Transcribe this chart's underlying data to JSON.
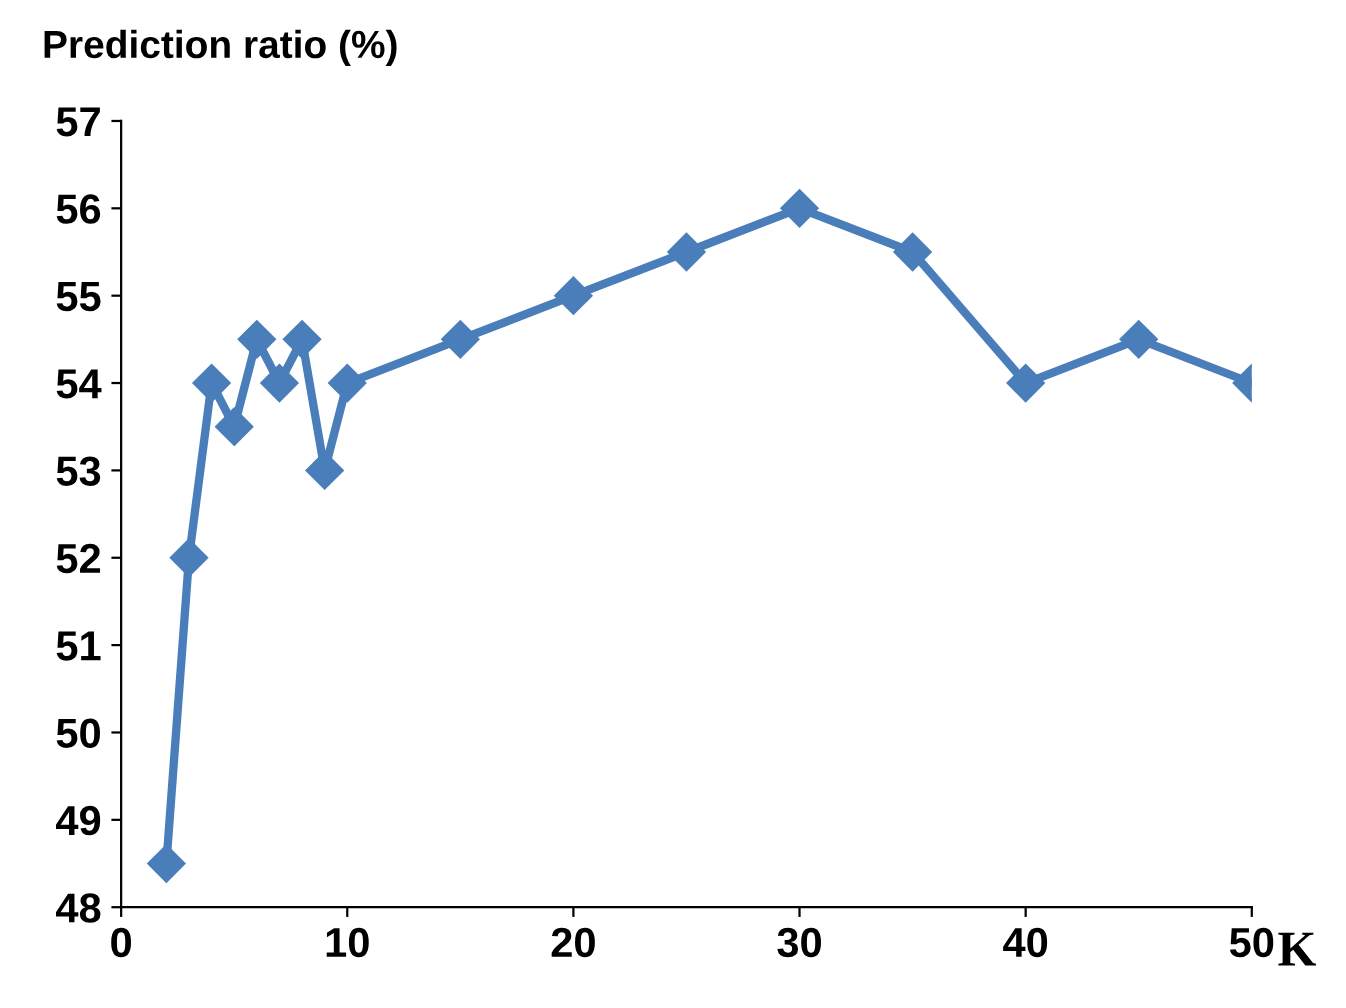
{
  "chart_data": {
    "type": "line",
    "xlabel": "K",
    "ylabel": "Prediction ratio (%)",
    "x": [
      2,
      3,
      4,
      5,
      6,
      7,
      8,
      9,
      10,
      15,
      20,
      25,
      30,
      35,
      40,
      45,
      50
    ],
    "series": [
      {
        "color": "#4a7ebb",
        "values": [
          48.5,
          52,
          54,
          53.5,
          54.5,
          54,
          54.5,
          53,
          54,
          54.5,
          55,
          55.5,
          56,
          55.5,
          54,
          54.5,
          54
        ]
      }
    ],
    "xlim": [
      0,
      50
    ],
    "xticks": [
      0,
      10,
      20,
      30,
      40,
      50
    ],
    "ylim": [
      48,
      57
    ],
    "yticks": [
      48,
      49,
      50,
      51,
      52,
      53,
      54,
      55,
      56,
      57
    ],
    "marker": "diamond",
    "line_style": "solid",
    "grid": false,
    "legend": false
  }
}
